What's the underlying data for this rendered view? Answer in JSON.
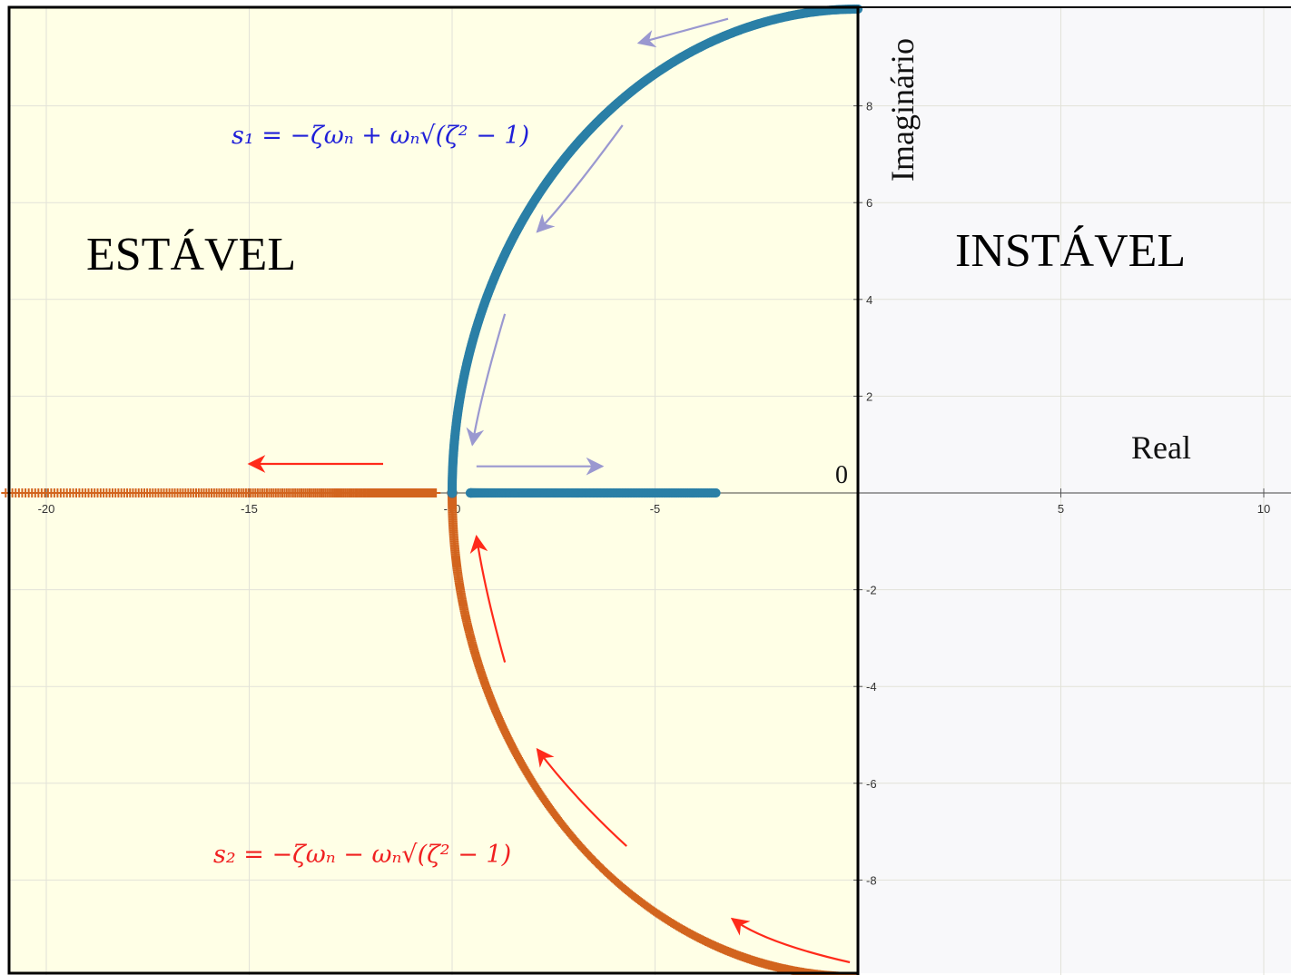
{
  "chart_data": {
    "type": "scatter",
    "title": "",
    "xlabel": "Real",
    "ylabel": "Imaginário",
    "xlim": [
      -21,
      10.6
    ],
    "ylim": [
      -10,
      10
    ],
    "origin_label": "0",
    "grid": true,
    "x_ticks": [
      -20,
      -15,
      -10,
      -5,
      5,
      10
    ],
    "y_ticks": [
      -8,
      -6,
      -4,
      -2,
      2,
      4,
      6,
      8
    ],
    "x_tick_labels": [
      "-20",
      "-15",
      "-10",
      "-5",
      "5",
      "10"
    ],
    "y_tick_labels": [
      "-8",
      "-6",
      "-4",
      "-2",
      "2",
      "4",
      "6",
      "8"
    ],
    "regions": {
      "stable": "ESTÁVEL",
      "unstable": "INSTÁVEL"
    },
    "colors": {
      "stable_bg": "#ffffe6",
      "unstable_bg": "#f8f8fa",
      "s1": "#2a7fa6",
      "s2": "#d2641e",
      "s1_arrow": "#9a98d0",
      "s2_arrow": "#ff2a1a",
      "s1_formula": "#1f1fd8",
      "s2_formula": "#f02020"
    },
    "omega_n": 10,
    "series": [
      {
        "marker": "circle",
        "formula": "s₁ = −ζωₙ + ωₙ√(ζ² − 1)",
        "arc_zeta": [
          0.0,
          1.0
        ],
        "real_axis_x": [
          -9.55,
          -3.5
        ]
      },
      {
        "marker": "plus",
        "formula": "s₂ = −ζωₙ − ωₙ√(ζ² − 1)",
        "arc_zeta": [
          0.0,
          1.0
        ],
        "real_axis_x": [
          -21,
          -10.4
        ]
      }
    ],
    "arrows": [
      {
        "series": "s1",
        "path": [
          [
            -3.2,
            9.8
          ],
          [
            -5.4,
            9.3
          ]
        ]
      },
      {
        "series": "s1",
        "path": [
          [
            -5.8,
            7.6
          ],
          [
            -7.2,
            6.0
          ],
          [
            -7.9,
            5.4
          ]
        ]
      },
      {
        "series": "s1",
        "path": [
          [
            -8.7,
            3.7
          ],
          [
            -9.3,
            2.0
          ],
          [
            -9.5,
            1.0
          ]
        ]
      },
      {
        "series": "s1",
        "path": [
          [
            -9.4,
            0.55
          ],
          [
            -6.3,
            0.55
          ]
        ]
      },
      {
        "series": "s2",
        "path": [
          [
            -11.7,
            0.6
          ],
          [
            -15.0,
            0.6
          ]
        ]
      },
      {
        "series": "s2",
        "path": [
          [
            -8.7,
            -3.5
          ],
          [
            -9.2,
            -2.0
          ],
          [
            -9.4,
            -0.9
          ]
        ]
      },
      {
        "series": "s2",
        "path": [
          [
            -5.7,
            -7.3
          ],
          [
            -7.0,
            -6.3
          ],
          [
            -7.9,
            -5.3
          ]
        ]
      },
      {
        "series": "s2",
        "path": [
          [
            -0.2,
            -9.7
          ],
          [
            -2.3,
            -9.3
          ],
          [
            -3.1,
            -8.8
          ]
        ]
      }
    ]
  }
}
